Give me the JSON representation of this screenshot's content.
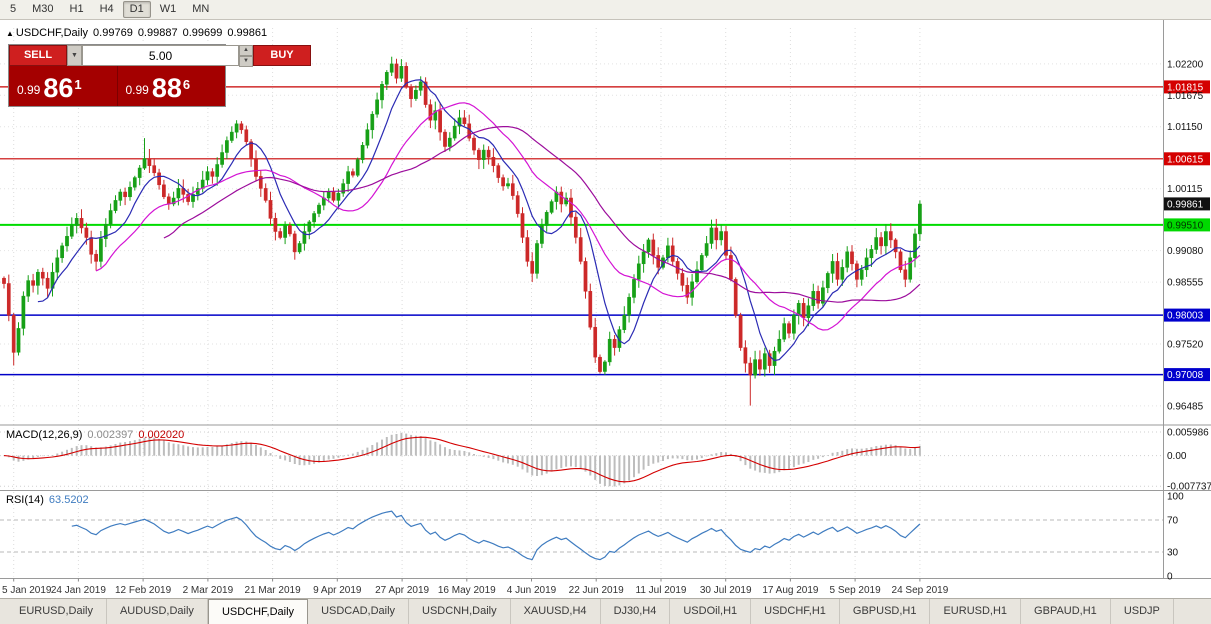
{
  "toolbar": {
    "timeframes": [
      "5",
      "M30",
      "H1",
      "H4",
      "D1",
      "W1",
      "MN"
    ],
    "active": "D1"
  },
  "header": {
    "expander": "▲",
    "symbol": "USDCHF,Daily",
    "open": "0.99769",
    "high": "0.99887",
    "low": "0.99699",
    "close": "0.99861"
  },
  "trade_panel": {
    "sell_label": "SELL",
    "buy_label": "BUY",
    "volume": "5.00",
    "dropdown_arrow": "▼",
    "spin_up": "▲",
    "spin_down": "▼",
    "sell_price": {
      "prefix": "0.99",
      "big": "86",
      "sup": "1"
    },
    "buy_price": {
      "prefix": "0.99",
      "big": "88",
      "sup": "6"
    }
  },
  "panels": {
    "macd": {
      "title": "MACD(12,26,9)",
      "main_value": "0.002397",
      "signal_value": "0.002020",
      "axis_labels": [
        "0.005986",
        "0.00",
        "-0.007737"
      ]
    },
    "rsi": {
      "title": "RSI(14)",
      "value": "63.5202",
      "axis_labels": [
        "100",
        "70",
        "30",
        "0"
      ]
    }
  },
  "price_axis": {
    "labels": [
      {
        "text": "1.02200",
        "price": 1.022,
        "style": "plain"
      },
      {
        "text": "1.01815",
        "price": 1.01815,
        "style": "red"
      },
      {
        "text": "1.01675",
        "price": 1.01675,
        "style": "plain"
      },
      {
        "text": "1.01150",
        "price": 1.0115,
        "style": "plain"
      },
      {
        "text": "1.00615",
        "price": 1.00615,
        "style": "red"
      },
      {
        "text": "1.00115",
        "price": 1.00115,
        "style": "plain"
      },
      {
        "text": "0.99861",
        "price": 0.99861,
        "style": "black"
      },
      {
        "text": "0.99510",
        "price": 0.9951,
        "style": "green"
      },
      {
        "text": "0.99080",
        "price": 0.9908,
        "style": "plain"
      },
      {
        "text": "0.98555",
        "price": 0.98555,
        "style": "plain"
      },
      {
        "text": "0.98003",
        "price": 0.98003,
        "style": "blue"
      },
      {
        "text": "0.97520",
        "price": 0.9752,
        "style": "plain"
      },
      {
        "text": "0.97008",
        "price": 0.97008,
        "style": "blue"
      },
      {
        "text": "0.96485",
        "price": 0.96485,
        "style": "plain"
      }
    ]
  },
  "tabs": {
    "active": "USDCHF,Daily",
    "items": [
      "EURUSD,Daily",
      "AUDUSD,Daily",
      "USDCHF,Daily",
      "USDCAD,Daily",
      "USDCNH,Daily",
      "XAUUSD,H4",
      "DJ30,H4",
      "USDOil,H1",
      "USDCHF,H1",
      "GBPUSD,H1",
      "EURUSD,H1",
      "GBPAUD,H1",
      "USDJP"
    ]
  },
  "chart_data": {
    "type": "candlestick",
    "symbol": "USDCHF",
    "timeframe": "Daily",
    "ylim": [
      0.9625,
      1.028
    ],
    "x_labels": [
      "5 Jan 2019",
      "24 Jan 2019",
      "12 Feb 2019",
      "2 Mar 2019",
      "21 Mar 2019",
      "9 Apr 2019",
      "27 Apr 2019",
      "16 May 2019",
      "4 Jun 2019",
      "22 Jun 2019",
      "11 Jul 2019",
      "30 Jul 2019",
      "17 Aug 2019",
      "5 Sep 2019",
      "24 Sep 2019"
    ],
    "first_open": 0.9862,
    "closes": [
      0.9853,
      0.98,
      0.9738,
      0.9778,
      0.9832,
      0.9858,
      0.985,
      0.9872,
      0.9862,
      0.9845,
      0.9872,
      0.9896,
      0.9916,
      0.9932,
      0.995,
      0.9962,
      0.9946,
      0.993,
      0.9902,
      0.989,
      0.9928,
      0.9952,
      0.9975,
      0.9992,
      1.0006,
      0.9998,
      1.0014,
      1.003,
      1.0046,
      1.0062,
      1.005,
      1.0038,
      1.0018,
      0.9998,
      0.9986,
      0.9996,
      1.0012,
      1.0002,
      0.999,
      1.0002,
      1.0012,
      1.0026,
      1.004,
      1.0032,
      1.0052,
      1.0072,
      1.0092,
      1.0106,
      1.012,
      1.011,
      1.009,
      1.0062,
      1.0032,
      1.0012,
      0.9992,
      0.9962,
      0.994,
      0.993,
      0.995,
      0.9936,
      0.9906,
      0.992,
      0.994,
      0.9956,
      0.997,
      0.9984,
      0.9996,
      1.0006,
      0.9992,
      1.0004,
      1.002,
      1.004,
      1.0034,
      1.006,
      1.0084,
      1.011,
      1.0136,
      1.016,
      1.0186,
      1.0206,
      1.022,
      1.0196,
      1.0216,
      1.0182,
      1.0162,
      1.0176,
      1.019,
      1.0152,
      1.0126,
      1.0142,
      1.0106,
      1.0082,
      1.0096,
      1.0116,
      1.013,
      1.012,
      1.0096,
      1.0076,
      1.006,
      1.0076,
      1.0064,
      1.005,
      1.003,
      1.0016,
      1.002,
      1.0,
      0.997,
      0.993,
      0.989,
      0.987,
      0.992,
      0.995,
      0.9972,
      0.999,
      1.0006,
      0.9986,
      0.9996,
      0.9964,
      0.993,
      0.989,
      0.984,
      0.978,
      0.973,
      0.9706,
      0.9722,
      0.976,
      0.9746,
      0.9776,
      0.98,
      0.983,
      0.986,
      0.9886,
      0.9906,
      0.9926,
      0.99,
      0.988,
      0.9896,
      0.9916,
      0.989,
      0.987,
      0.985,
      0.983,
      0.9856,
      0.9876,
      0.99,
      0.992,
      0.9946,
      0.9926,
      0.994,
      0.99,
      0.986,
      0.98,
      0.9746,
      0.972,
      0.97,
      0.9726,
      0.971,
      0.9736,
      0.9716,
      0.974,
      0.976,
      0.9786,
      0.977,
      0.98,
      0.982,
      0.9796,
      0.9816,
      0.984,
      0.982,
      0.9846,
      0.987,
      0.989,
      0.986,
      0.988,
      0.9906,
      0.9886,
      0.986,
      0.9876,
      0.9896,
      0.991,
      0.993,
      0.9916,
      0.994,
      0.9926,
      0.9906,
      0.9876,
      0.986,
      0.9896,
      0.9936,
      0.9986
    ],
    "wick_overrides": {
      "2": {
        "low": 0.9716
      },
      "29": {
        "high": 1.0096
      },
      "48": {
        "high": 1.0126
      },
      "80": {
        "high": 1.0232
      },
      "82": {
        "high": 1.0228
      },
      "154": {
        "low": 0.9649
      },
      "189": {
        "high": 0.9992
      }
    },
    "moving_averages": [
      {
        "period": 8,
        "color": "#2b2bb4"
      },
      {
        "period": 20,
        "color": "#d414d4"
      },
      {
        "period": 34,
        "color": "#9c0d9c"
      }
    ],
    "hlines": [
      {
        "price": 1.01815,
        "color": "#c70000",
        "width": 1.2
      },
      {
        "price": 1.00615,
        "color": "#c70000",
        "width": 1.2
      },
      {
        "price": 0.9951,
        "color": "#00dc00",
        "width": 2
      },
      {
        "price": 0.98003,
        "color": "#0000c8",
        "width": 1.5
      },
      {
        "price": 0.97008,
        "color": "#0000c8",
        "width": 1.5
      }
    ],
    "macd": {
      "fast": 12,
      "slow": 26,
      "signal": 9,
      "range": [
        -0.0082,
        0.0065
      ],
      "axis_values": [
        0.005986,
        0.0,
        -0.007737
      ],
      "main_value": 0.002397,
      "signal_value": 0.00202
    },
    "rsi": {
      "period": 14,
      "levels": [
        70,
        30
      ],
      "range": [
        0,
        100
      ],
      "last_value": 63.5202
    },
    "up_color": "#17a017",
    "down_color": "#cc2929"
  }
}
